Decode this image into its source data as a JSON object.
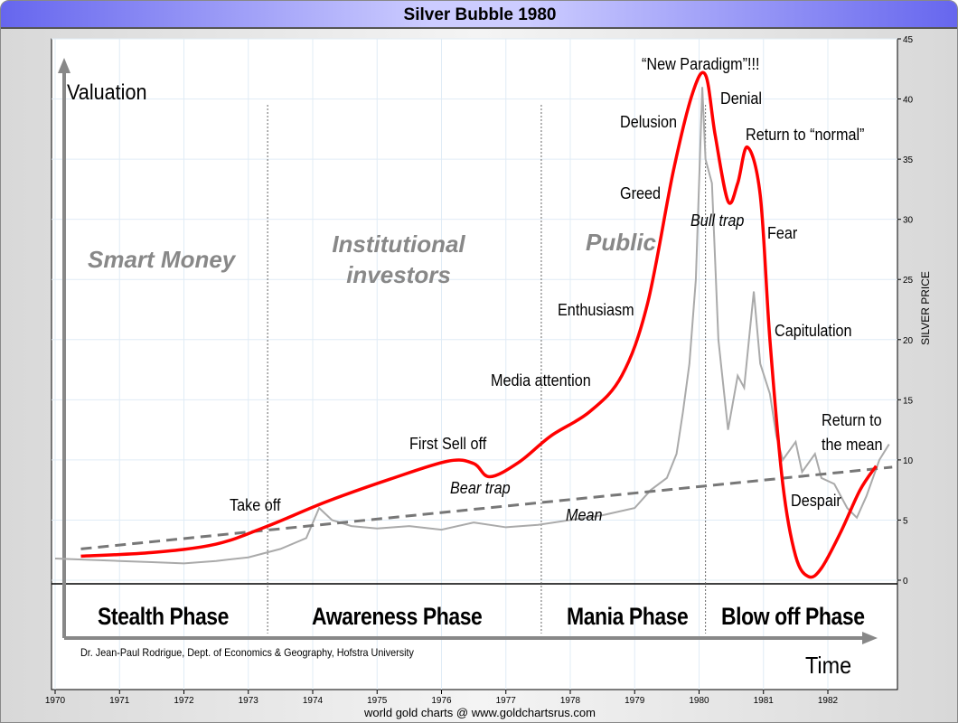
{
  "window": {
    "title": "Silver Bubble 1980"
  },
  "footer": "world gold charts @ www.goldchartsrus.com",
  "credit": "Dr. Jean-Paul Rodrigue, Dept. of Economics & Geography, Hofstra University",
  "concept": {
    "y_axis_label": "Valuation",
    "x_axis_label": "Time",
    "groups": [
      "Smart Money",
      "Institutional investors",
      "Public"
    ],
    "phases": [
      "Stealth Phase",
      "Awareness Phase",
      "Mania Phase",
      "Blow off Phase"
    ],
    "annotations": {
      "take_off": "Take off",
      "first_sell_off": "First Sell off",
      "bear_trap": "Bear trap",
      "media_attention": "Media attention",
      "enthusiasm": "Enthusiasm",
      "greed": "Greed",
      "delusion": "Delusion",
      "new_paradigm": "“New Paradigm”!!!",
      "denial": "Denial",
      "bull_trap": "Bull trap",
      "return_normal": "Return to “normal”",
      "fear": "Fear",
      "capitulation": "Capitulation",
      "despair": "Despair",
      "return_mean_1": "Return to",
      "return_mean_2": "the mean",
      "mean": "Mean"
    }
  },
  "chart_data": {
    "type": "line",
    "title": "Silver Bubble 1980",
    "ylabel": "SILVER PRICE",
    "ylim": [
      0,
      45
    ],
    "yticks": [
      0,
      5,
      10,
      15,
      20,
      25,
      30,
      35,
      40,
      45
    ],
    "xlim": [
      1970,
      1983
    ],
    "xticks": [
      "1970",
      "1971",
      "1972",
      "1973",
      "1974",
      "1975",
      "1976",
      "1977",
      "1978",
      "1979",
      "1980",
      "1981",
      "1982"
    ],
    "grid": true,
    "colors": {
      "price": "#aaaaaa",
      "bubble": "#ff0000",
      "mean": "#777777"
    },
    "series": [
      {
        "key": "price",
        "x": [
          1970.0,
          1970.5,
          1971.0,
          1971.5,
          1972.0,
          1972.5,
          1973.0,
          1973.5,
          1973.9,
          1974.1,
          1974.3,
          1974.6,
          1975.0,
          1975.5,
          1976.0,
          1976.5,
          1977.0,
          1977.5,
          1978.0,
          1978.5,
          1979.0,
          1979.25,
          1979.5,
          1979.65,
          1979.75,
          1979.85,
          1979.95,
          1980.05,
          1980.1,
          1980.2,
          1980.3,
          1980.45,
          1980.6,
          1980.7,
          1980.85,
          1980.95,
          1981.1,
          1981.2,
          1981.3,
          1981.5,
          1981.6,
          1981.8,
          1981.9,
          1982.1,
          1982.3,
          1982.45,
          1982.6,
          1982.8,
          1982.95
        ],
        "y": [
          1.8,
          1.7,
          1.6,
          1.5,
          1.4,
          1.6,
          1.9,
          2.6,
          3.5,
          6.0,
          5.0,
          4.5,
          4.3,
          4.5,
          4.2,
          4.8,
          4.4,
          4.6,
          5.0,
          5.4,
          6.0,
          7.5,
          8.5,
          10.5,
          14,
          18,
          25,
          41,
          35,
          33,
          20,
          12.5,
          17,
          16,
          24,
          18,
          15.5,
          12,
          10,
          11.5,
          9,
          10.5,
          8.5,
          8,
          6,
          5.2,
          7,
          10,
          11.3
        ]
      },
      {
        "key": "bubble",
        "x": [
          1970.4,
          1971.5,
          1972.5,
          1973.3,
          1974.2,
          1975.2,
          1976.1,
          1976.5,
          1976.75,
          1977.2,
          1977.7,
          1978.3,
          1978.8,
          1979.2,
          1979.6,
          1979.9,
          1980.1,
          1980.25,
          1980.45,
          1980.6,
          1980.75,
          1980.95,
          1981.1,
          1981.3,
          1981.5,
          1981.7,
          1981.9,
          1982.2,
          1982.5,
          1982.75
        ],
        "y": [
          2.0,
          2.3,
          3.0,
          4.5,
          6.5,
          8.4,
          9.9,
          9.7,
          8.6,
          9.8,
          12.0,
          14.0,
          17.0,
          23,
          34,
          40.5,
          42,
          37,
          31.5,
          33,
          36,
          32,
          20,
          8,
          2,
          0.3,
          1,
          4,
          7.5,
          9.5
        ]
      },
      {
        "key": "mean",
        "x": [
          1970.4,
          1983.0
        ],
        "y": [
          2.6,
          9.4
        ]
      }
    ]
  }
}
